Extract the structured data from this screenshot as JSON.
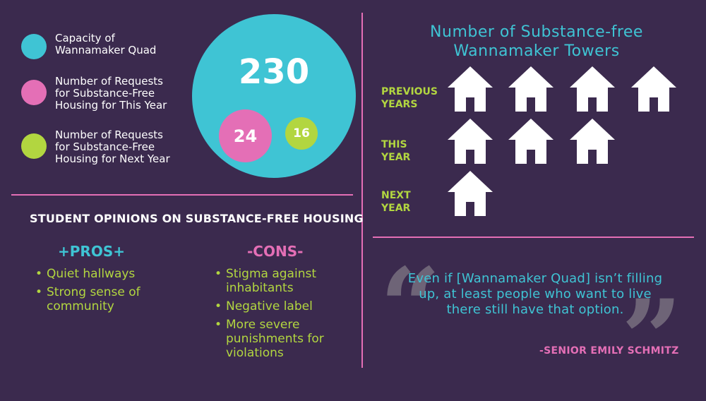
{
  "colors": {
    "background": "#3b2a4e",
    "teal": "#3fc4d4",
    "pink": "#e46fb6",
    "green": "#b2d640",
    "divider": "#e46fb6"
  },
  "legend": [
    {
      "label": "Capacity of\nWannamaker Quad",
      "color": "#3fc4d4"
    },
    {
      "label": "Number of Requests\nfor Substance-Free\nHousing for This Year",
      "color": "#e46fb6"
    },
    {
      "label": "Number of Requests\nfor Substance-Free\nHousing for Next Year",
      "color": "#b2d640"
    }
  ],
  "bubbles": {
    "capacity": "230",
    "this_year": "24",
    "next_year": "16"
  },
  "opinions": {
    "title": "STUDENT OPINIONS ON SUBSTANCE-FREE HOUSING",
    "pros_title": "+PROS+",
    "pros": [
      "Quiet hallways",
      "Strong sense of community"
    ],
    "cons_title": "-CONS-",
    "cons": [
      "Stigma against inhabitants",
      "Negative label",
      "More severe punishments for violations"
    ]
  },
  "towers": {
    "title": "Number of Substance-free Wannamaker Towers",
    "rows": [
      {
        "label": "PREVIOUS\nYEARS",
        "count": 4,
        "icon": "house-icon"
      },
      {
        "label": "THIS\nYEAR",
        "count": 3,
        "icon": "house-icon"
      },
      {
        "label": "NEXT\nYEAR",
        "count": 1,
        "icon": "house-icon"
      }
    ]
  },
  "quote": {
    "text": "Even if [Wannamaker Quad] isn’t filling up, at least people who want to live there still have that option.",
    "open_mark": "“",
    "close_mark": "”",
    "attribution": "-SENIOR EMILY SCHMITZ"
  }
}
